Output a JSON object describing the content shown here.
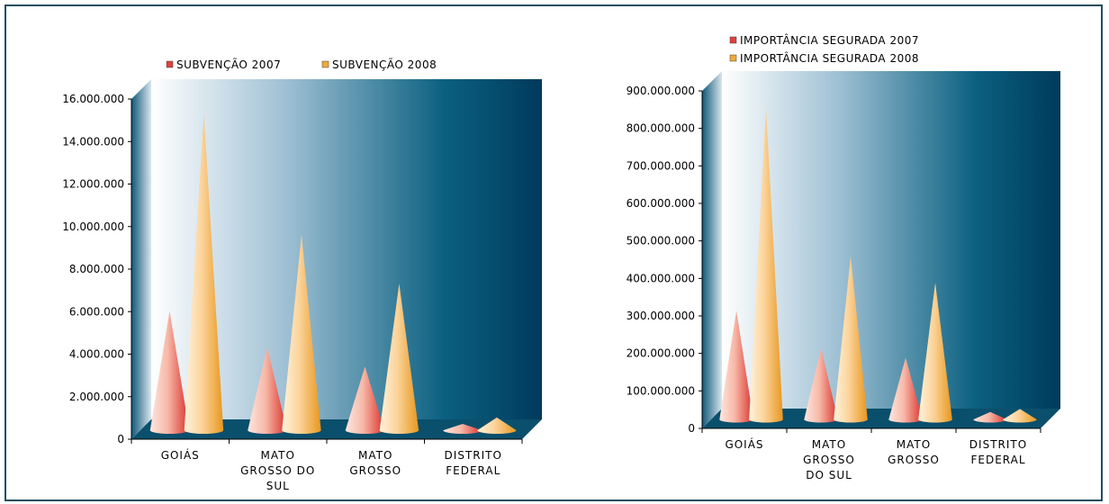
{
  "chart_data": [
    {
      "type": "bar",
      "categories": [
        [
          "GOIÁS"
        ],
        [
          "MATO",
          "GROSSO DO",
          "SUL"
        ],
        [
          "MATO",
          "GROSSO"
        ],
        [
          "DISTRITO",
          "FEDERAL"
        ]
      ],
      "series": [
        {
          "name": "SUBVENÇÃO 2007",
          "values": [
            5600000,
            3900000,
            3000000,
            300000
          ]
        },
        {
          "name": "SUBVENÇÃO 2008",
          "values": [
            14900000,
            9200000,
            6900000,
            600000
          ]
        }
      ],
      "yticks": [
        "0",
        "2.000.000",
        "4.000.000",
        "6.000.000",
        "8.000.000",
        "10.000.000",
        "12.000.000",
        "14.000.000",
        "16.000.000"
      ],
      "ylim": [
        0,
        16000000
      ],
      "legend": "top"
    },
    {
      "type": "bar",
      "categories": [
        [
          "GOIÁS"
        ],
        [
          "MATO",
          "GROSSO",
          "DO SUL"
        ],
        [
          "MATO",
          "GROSSO"
        ],
        [
          "DISTRITO",
          "FEDERAL"
        ]
      ],
      "series": [
        {
          "name": "IMPORTÂNCIA SEGURADA 2007",
          "values": [
            290000000,
            190000000,
            165000000,
            20000000
          ]
        },
        {
          "name": "IMPORTÂNCIA SEGURADA 2008",
          "values": [
            830000000,
            435000000,
            365000000,
            28000000
          ]
        }
      ],
      "yticks": [
        "0",
        "100.000.000",
        "200.000.000",
        "300.000.000",
        "400.000.000",
        "500.000.000",
        "600.000.000",
        "700.000.000",
        "800.000.000",
        "900.000.000"
      ],
      "ylim": [
        0,
        900000000
      ],
      "legend": "top-left"
    }
  ],
  "colors": {
    "series_2007": "#e0413a",
    "series_2008": "#f2a93b",
    "wall_dark": "#003a5c",
    "wall_light": "#ffffff",
    "frame": "#1f4e5f"
  }
}
